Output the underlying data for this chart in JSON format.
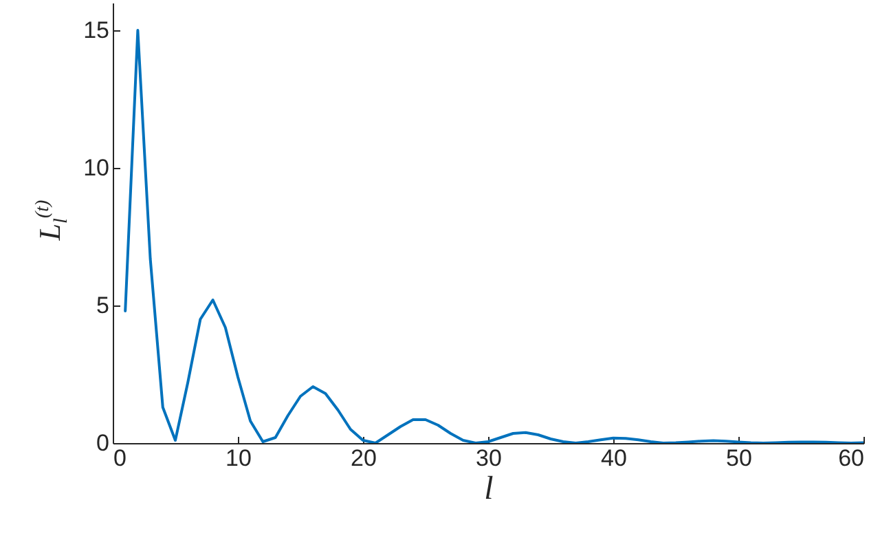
{
  "chart_data": {
    "type": "line",
    "xlabel": "l",
    "ylabel": "L$_{l}$$^{(t)}$",
    "x": [
      1,
      2,
      3,
      4,
      5,
      6,
      7,
      8,
      9,
      10,
      11,
      12,
      13,
      14,
      15,
      16,
      17,
      18,
      19,
      20,
      21,
      22,
      23,
      24,
      25,
      26,
      27,
      28,
      29,
      30,
      31,
      32,
      33,
      34,
      35,
      36,
      37,
      38,
      39,
      40,
      41,
      42,
      43,
      44,
      45,
      46,
      47,
      48,
      49,
      50,
      51,
      52,
      53,
      54,
      55,
      56,
      57,
      58,
      59,
      60
    ],
    "series": [
      {
        "color": "#0072bd",
        "values": [
          4.8,
          15.0,
          6.7,
          1.3,
          0.1,
          2.2,
          4.5,
          5.2,
          4.2,
          2.4,
          0.8,
          0.05,
          0.2,
          1.0,
          1.7,
          2.05,
          1.8,
          1.2,
          0.5,
          0.1,
          0.0,
          0.3,
          0.6,
          0.85,
          0.85,
          0.65,
          0.35,
          0.1,
          0.0,
          0.05,
          0.2,
          0.35,
          0.38,
          0.3,
          0.15,
          0.05,
          0.0,
          0.05,
          0.12,
          0.18,
          0.17,
          0.12,
          0.05,
          0.0,
          0.01,
          0.04,
          0.07,
          0.09,
          0.07,
          0.04,
          0.01,
          0.0,
          0.01,
          0.03,
          0.04,
          0.04,
          0.03,
          0.01,
          0.0,
          0.01
        ]
      }
    ],
    "xlim": [
      0,
      60
    ],
    "xticks": [
      0,
      10,
      20,
      30,
      40,
      50,
      60
    ],
    "ylim": [
      0,
      16
    ],
    "yticks": [
      0,
      5,
      10,
      15
    ],
    "grid": false,
    "marker": "none",
    "line_style": "solid"
  }
}
